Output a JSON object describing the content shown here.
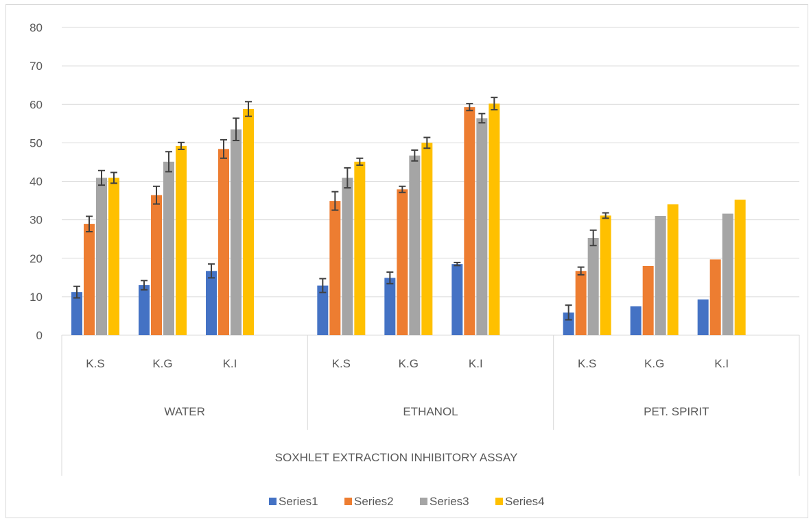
{
  "chart_data": {
    "type": "bar",
    "title": "",
    "ylim": [
      0,
      80
    ],
    "yticks": [
      0,
      10,
      20,
      30,
      40,
      50,
      60,
      70,
      80
    ],
    "grid": true,
    "legend_position": "bottom",
    "group_title": "SOXHLET EXTRACTION INHIBITORY ASSAY",
    "groups": [
      "WATER",
      "ETHANOL",
      "PET. SPIRIT"
    ],
    "categories": [
      "K.S",
      "K.G",
      "K.I"
    ],
    "series": [
      {
        "name": "Series1",
        "color": "#4472C4",
        "values": [
          [
            11.2,
            13.0,
            16.7
          ],
          [
            12.9,
            14.9,
            18.5
          ],
          [
            5.9,
            7.5,
            9.3
          ]
        ],
        "errors": [
          [
            1.5,
            1.2,
            1.8
          ],
          [
            1.8,
            1.5,
            0.4
          ],
          [
            1.9,
            0,
            0
          ]
        ]
      },
      {
        "name": "Series2",
        "color": "#ED7D31",
        "values": [
          [
            28.9,
            36.4,
            48.4
          ],
          [
            34.9,
            37.9,
            59.3
          ],
          [
            16.7,
            18.0,
            19.7
          ]
        ],
        "errors": [
          [
            2.0,
            2.3,
            2.4
          ],
          [
            2.4,
            0.8,
            0.9
          ],
          [
            1.0,
            0,
            0
          ]
        ]
      },
      {
        "name": "Series3",
        "color": "#A5A5A5",
        "values": [
          [
            40.9,
            45.1,
            53.5
          ],
          [
            40.9,
            46.7,
            56.4
          ],
          [
            25.3,
            31.0,
            31.6
          ]
        ],
        "errors": [
          [
            1.9,
            2.6,
            2.9
          ],
          [
            2.6,
            1.4,
            1.2
          ],
          [
            2.0,
            0,
            0
          ]
        ]
      },
      {
        "name": "Series4",
        "color": "#FFC000",
        "values": [
          [
            40.9,
            49.2,
            58.8
          ],
          [
            45.1,
            50.0,
            60.2
          ],
          [
            31.1,
            34.0,
            35.2
          ]
        ],
        "errors": [
          [
            1.4,
            0.9,
            1.9
          ],
          [
            0.9,
            1.4,
            1.6
          ],
          [
            0.7,
            0,
            0
          ]
        ]
      }
    ]
  }
}
